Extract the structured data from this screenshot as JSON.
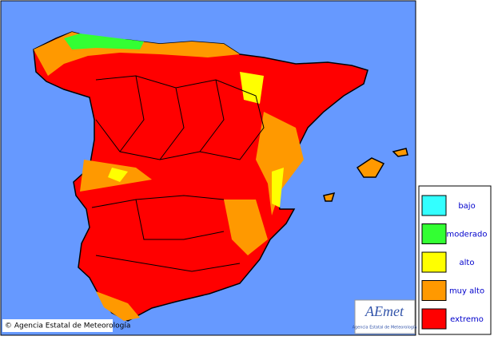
{
  "legend": {
    "items": [
      {
        "label": "bajo",
        "color": "#33ffff"
      },
      {
        "label": "moderado",
        "color": "#33ff33"
      },
      {
        "label": "alto",
        "color": "#ffff00"
      },
      {
        "label": "muy alto",
        "color": "#ff9900"
      },
      {
        "label": "extremo",
        "color": "#ff0000"
      }
    ]
  },
  "copyright": "© Agencia Estatal de Meteorología",
  "logo": {
    "name": "AEmet",
    "subtitle": "Agencia Estatal de Meteorología"
  }
}
